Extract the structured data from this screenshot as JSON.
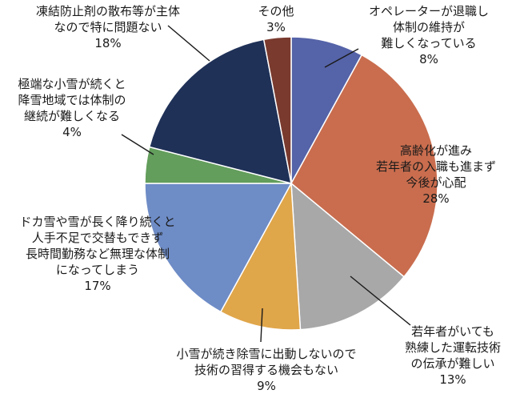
{
  "chart_data": {
    "type": "pie",
    "title": "",
    "slices": [
      {
        "label": "オペレーターが退職し体制の維持が難しくなっている",
        "lines": [
          "オペレーターが退職し",
          "体制の維持が",
          "難しくなっている"
        ],
        "value": 8,
        "value_label": "8%",
        "color": "#5563a8"
      },
      {
        "label": "高齢化が進み若年者の入職も進まず今後が心配",
        "lines": [
          "高齢化が進み",
          "若年者の入職も進まず",
          "今後が心配"
        ],
        "value": 28,
        "value_label": "28%",
        "color": "#c96d4e"
      },
      {
        "label": "若年者がいても熟練した運転技術の伝承が難しい",
        "lines": [
          "若年者がいても",
          "熟練した運転技術",
          "の伝承が難しい"
        ],
        "value": 13,
        "value_label": "13%",
        "color": "#a8a8a8"
      },
      {
        "label": "小雪が続き除雪に出動しないので技術の習得する機会もない",
        "lines": [
          "小雪が続き除雪に出動しないので",
          "技術の習得する機会もない"
        ],
        "value": 9,
        "value_label": "9%",
        "color": "#e0a64a"
      },
      {
        "label": "ドカ雪や雪が長く降り続くと人手不足で交替もできず長時間勤務など無理な体制になってしまう",
        "lines": [
          "ドカ雪や雪が長く降り続くと",
          "人手不足で交替もできず",
          "長時間勤務など無理な体制",
          "になってしまう"
        ],
        "value": 17,
        "value_label": "17%",
        "color": "#6e8cc6"
      },
      {
        "label": "極端な小雪が続くと降雪地域では体制の継続が難しくなる",
        "lines": [
          "極端な小雪が続くと",
          "降雪地域では体制の",
          "継続が難しくなる"
        ],
        "value": 4,
        "value_label": "4%",
        "color": "#639e5c"
      },
      {
        "label": "凍結防止剤の散布等が主体なので特に問題ない",
        "lines": [
          "凍結防止剤の散布等が主体",
          "なので特に問題ない"
        ],
        "value": 18,
        "value_label": "18%",
        "color": "#1f3157"
      },
      {
        "label": "その他",
        "lines": [
          "その他"
        ],
        "value": 3,
        "value_label": "3%",
        "color": "#7a3a2e"
      }
    ]
  }
}
